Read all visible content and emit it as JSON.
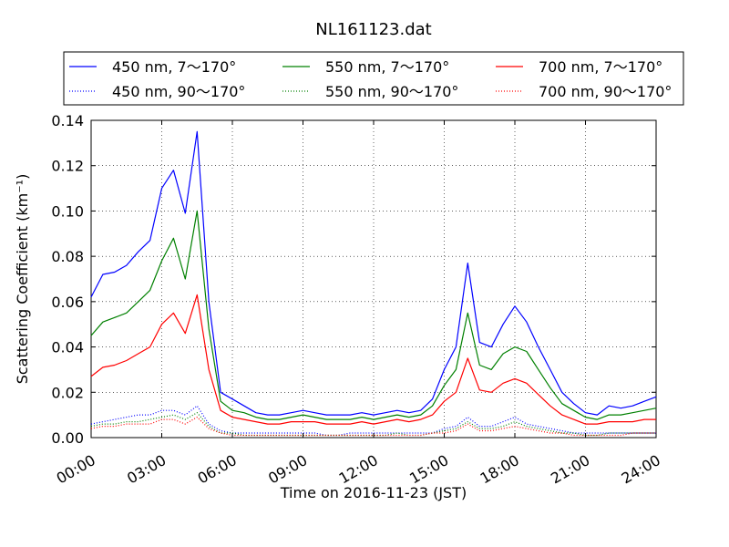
{
  "chart_data": {
    "type": "line",
    "title": "NL161123.dat",
    "xlabel": "Time on 2016-11-23 (JST)",
    "ylabel": "Scattering Coefficient (km⁻¹)",
    "xlim": [
      "00:00",
      "24:00"
    ],
    "ylim": [
      0.0,
      0.14
    ],
    "x_ticks": [
      "00:00",
      "03:00",
      "06:00",
      "09:00",
      "12:00",
      "15:00",
      "18:00",
      "21:00",
      "24:00"
    ],
    "y_ticks": [
      "0.00",
      "0.02",
      "0.04",
      "0.06",
      "0.08",
      "0.10",
      "0.12",
      "0.14"
    ],
    "grid": true,
    "legend_position": "top, above plot",
    "x": [
      "00:00",
      "00:30",
      "01:00",
      "01:30",
      "02:00",
      "02:30",
      "03:00",
      "03:30",
      "04:00",
      "04:30",
      "05:00",
      "05:30",
      "06:00",
      "06:30",
      "07:00",
      "07:30",
      "08:00",
      "08:30",
      "09:00",
      "09:30",
      "10:00",
      "10:30",
      "11:00",
      "11:30",
      "12:00",
      "12:30",
      "13:00",
      "13:30",
      "14:00",
      "14:30",
      "15:00",
      "15:30",
      "16:00",
      "16:30",
      "17:00",
      "17:30",
      "18:00",
      "18:30",
      "19:00",
      "19:30",
      "20:00",
      "20:30",
      "21:00",
      "21:30",
      "22:00",
      "22:30",
      "23:00",
      "23:30",
      "24:00"
    ],
    "series": [
      {
        "name": "450 nm, 7～170°",
        "color": "#0000ff",
        "style": "solid",
        "values": [
          0.062,
          0.072,
          0.073,
          0.076,
          0.082,
          0.087,
          0.11,
          0.118,
          0.099,
          0.135,
          0.06,
          0.02,
          0.017,
          0.014,
          0.011,
          0.01,
          0.01,
          0.011,
          0.012,
          0.011,
          0.01,
          0.01,
          0.01,
          0.011,
          0.01,
          0.011,
          0.012,
          0.011,
          0.012,
          0.017,
          0.03,
          0.04,
          0.077,
          0.042,
          0.04,
          0.05,
          0.058,
          0.051,
          0.04,
          0.03,
          0.02,
          0.015,
          0.011,
          0.01,
          0.014,
          0.013,
          0.014,
          0.016,
          0.018
        ]
      },
      {
        "name": "450 nm, 90～170°",
        "color": "#0000ff",
        "style": "dotted",
        "values": [
          0.006,
          0.007,
          0.008,
          0.009,
          0.01,
          0.01,
          0.012,
          0.012,
          0.01,
          0.014,
          0.006,
          0.003,
          0.002,
          0.002,
          0.002,
          0.002,
          0.002,
          0.002,
          0.002,
          0.002,
          0.001,
          0.001,
          0.002,
          0.002,
          0.002,
          0.002,
          0.002,
          0.002,
          0.002,
          0.002,
          0.004,
          0.005,
          0.009,
          0.005,
          0.005,
          0.007,
          0.009,
          0.006,
          0.005,
          0.004,
          0.003,
          0.002,
          0.002,
          0.002,
          0.002,
          0.002,
          0.002,
          0.002,
          0.002
        ]
      },
      {
        "name": "550 nm, 7～170°",
        "color": "#008000",
        "style": "solid",
        "values": [
          0.045,
          0.051,
          0.053,
          0.055,
          0.06,
          0.065,
          0.078,
          0.088,
          0.07,
          0.1,
          0.048,
          0.016,
          0.012,
          0.011,
          0.009,
          0.008,
          0.008,
          0.009,
          0.01,
          0.009,
          0.008,
          0.008,
          0.008,
          0.009,
          0.008,
          0.009,
          0.01,
          0.009,
          0.01,
          0.014,
          0.023,
          0.03,
          0.055,
          0.032,
          0.03,
          0.037,
          0.04,
          0.038,
          0.03,
          0.022,
          0.015,
          0.012,
          0.009,
          0.008,
          0.01,
          0.01,
          0.011,
          0.012,
          0.013
        ]
      },
      {
        "name": "550 nm, 90～170°",
        "color": "#008000",
        "style": "dotted",
        "values": [
          0.005,
          0.006,
          0.006,
          0.007,
          0.007,
          0.008,
          0.009,
          0.01,
          0.008,
          0.011,
          0.005,
          0.002,
          0.002,
          0.001,
          0.001,
          0.001,
          0.001,
          0.001,
          0.001,
          0.001,
          0.001,
          0.001,
          0.001,
          0.001,
          0.001,
          0.001,
          0.002,
          0.001,
          0.001,
          0.002,
          0.003,
          0.004,
          0.007,
          0.004,
          0.004,
          0.005,
          0.007,
          0.005,
          0.004,
          0.003,
          0.002,
          0.002,
          0.001,
          0.001,
          0.002,
          0.002,
          0.002,
          0.002,
          0.002
        ]
      },
      {
        "name": "700 nm, 7～170°",
        "color": "#ff0000",
        "style": "solid",
        "values": [
          0.027,
          0.031,
          0.032,
          0.034,
          0.037,
          0.04,
          0.05,
          0.055,
          0.046,
          0.063,
          0.03,
          0.012,
          0.009,
          0.008,
          0.007,
          0.006,
          0.006,
          0.007,
          0.007,
          0.007,
          0.006,
          0.006,
          0.006,
          0.007,
          0.006,
          0.007,
          0.008,
          0.007,
          0.008,
          0.01,
          0.016,
          0.02,
          0.035,
          0.021,
          0.02,
          0.024,
          0.026,
          0.024,
          0.019,
          0.014,
          0.01,
          0.008,
          0.006,
          0.006,
          0.007,
          0.007,
          0.007,
          0.008,
          0.008
        ]
      },
      {
        "name": "700 nm, 90～170°",
        "color": "#ff0000",
        "style": "dotted",
        "values": [
          0.004,
          0.005,
          0.005,
          0.006,
          0.006,
          0.006,
          0.008,
          0.008,
          0.006,
          0.009,
          0.004,
          0.002,
          0.001,
          0.001,
          0.001,
          0.001,
          0.001,
          0.001,
          0.001,
          0.001,
          0.001,
          0.001,
          0.001,
          0.001,
          0.001,
          0.001,
          0.001,
          0.001,
          0.001,
          0.002,
          0.002,
          0.003,
          0.006,
          0.003,
          0.003,
          0.004,
          0.005,
          0.004,
          0.003,
          0.002,
          0.002,
          0.001,
          0.001,
          0.001,
          0.001,
          0.001,
          0.002,
          0.002,
          0.002
        ]
      }
    ]
  }
}
